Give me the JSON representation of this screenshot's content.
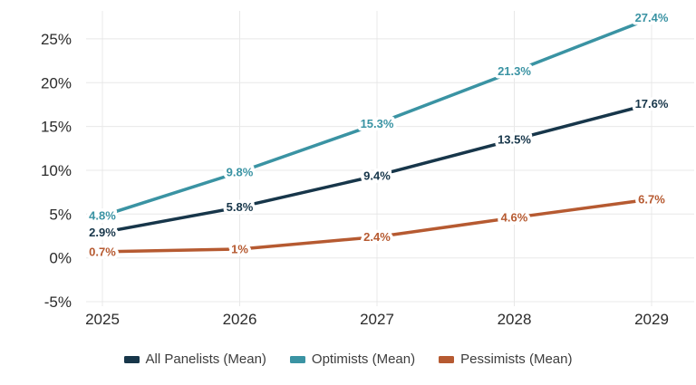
{
  "chart_data": {
    "type": "line",
    "x": [
      2025,
      2026,
      2027,
      2028,
      2029
    ],
    "x_tick_labels": [
      "2025",
      "2026",
      "2027",
      "2028",
      "2029"
    ],
    "y_ticks": [
      -5,
      0,
      5,
      10,
      15,
      20,
      25
    ],
    "y_tick_labels": [
      "-5%",
      "0%",
      "5%",
      "10%",
      "15%",
      "20%",
      "25%"
    ],
    "ylim": [
      -5,
      28.2
    ],
    "grid": true,
    "legend_position": "bottom",
    "value_labels_shown": true,
    "series": [
      {
        "name": "All Panelists (Mean)",
        "color": "#17364a",
        "values": [
          2.9,
          5.8,
          9.4,
          13.5,
          17.6
        ],
        "labels": [
          "2.9%",
          "5.8%",
          "9.4%",
          "13.5%",
          "17.6%"
        ]
      },
      {
        "name": "Optimists (Mean)",
        "color": "#3a93a3",
        "values": [
          4.8,
          9.8,
          15.3,
          21.3,
          27.4
        ],
        "labels": [
          "4.8%",
          "9.8%",
          "15.3%",
          "21.3%",
          "27.4%"
        ]
      },
      {
        "name": "Pessimists (Mean)",
        "color": "#b65a31",
        "values": [
          0.7,
          1.0,
          2.4,
          4.6,
          6.7
        ],
        "labels": [
          "0.7%",
          "1%",
          "2.4%",
          "4.6%",
          "6.7%"
        ]
      }
    ]
  },
  "colors": {
    "background": "#ffffff",
    "grid": "#e8e8e8",
    "axis_text": "#2b2b2b",
    "legend_text": "#3d3d3d"
  }
}
